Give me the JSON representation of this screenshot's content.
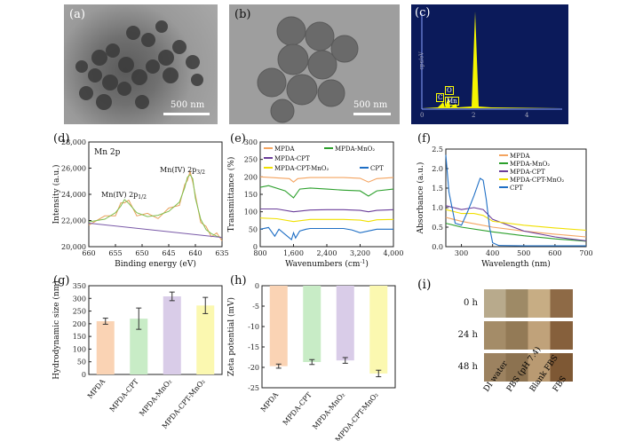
{
  "panels": {
    "a": {
      "label": "(a)",
      "scale": "500 nm"
    },
    "b": {
      "label": "(b)",
      "scale": "500 nm"
    },
    "c": {
      "label": "(c)",
      "ylabel": "cps/eV",
      "peaks": [
        "C",
        "O",
        "Mn"
      ],
      "xticks": [
        "0",
        "2",
        "4"
      ]
    },
    "d": {
      "label": "(d)",
      "title": "Mn 2p",
      "peak1": "Mn(IV) 2p",
      "peak1_sub": "1/2",
      "peak2": "Mn(IV) 2p",
      "peak2_sub": "3/2",
      "xlabel": "Binding energy (eV)",
      "ylabel": "Intensity (a.u.)"
    },
    "e": {
      "label": "(e)",
      "xlabel": "Wavenumbers (cm",
      "xlabel_sup": "-1",
      "xlabel_end": ")",
      "ylabel": "Transmittance (%)"
    },
    "f": {
      "label": "(f)",
      "xlabel": "Wavelength (nm)",
      "ylabel": "Absorbance (a.u.)"
    },
    "g": {
      "label": "(g)",
      "ylabel": "Hydrodynamic size (nm)"
    },
    "h": {
      "label": "(h)",
      "ylabel": "Zeta potential (mV)"
    },
    "i": {
      "label": "(i)",
      "rows": [
        "0 h",
        "24 h",
        "48 h"
      ],
      "cols": [
        "DI water",
        "PBS (pH 7.4)",
        "Blank FBS",
        "FBS"
      ]
    }
  },
  "colors": {
    "orange": "#f4a460",
    "green": "#2ca02c",
    "purple": "#6a3d9a",
    "yellow": "#f0e000",
    "blue": "#1f6fc5",
    "eds": "#f5f500"
  },
  "chart_data": [
    {
      "id": "d",
      "type": "line",
      "xlim": [
        660,
        635
      ],
      "ylim": [
        20000,
        28000
      ],
      "xticks": [
        "660",
        "655",
        "650",
        "645",
        "640",
        "635"
      ],
      "yticks": [
        "20,000",
        "22,000",
        "24,000",
        "26,000",
        "28,000"
      ],
      "series": [
        {
          "x": [
            660,
            657,
            655,
            654,
            653.3,
            652.5,
            651,
            649,
            647,
            645,
            643,
            642,
            641.5,
            641,
            640.5,
            640,
            639,
            638,
            637,
            636,
            635
          ],
          "y": [
            21900,
            22100,
            22600,
            23100,
            23600,
            23300,
            22600,
            22300,
            22400,
            22700,
            23400,
            24500,
            25300,
            25500,
            25200,
            23700,
            22100,
            21300,
            21000,
            20800,
            20700
          ]
        }
      ]
    },
    {
      "id": "e",
      "type": "line",
      "xlim": [
        800,
        4000
      ],
      "ylim": [
        0,
        300
      ],
      "xticks": [
        "800",
        "1,600",
        "2,400",
        "3,200",
        "4,000"
      ],
      "yticks": [
        "0",
        "50",
        "100",
        "150",
        "200",
        "250",
        "300"
      ],
      "legend": [
        "MPDA",
        "MPDA-MnO2",
        "MPDA-CPT",
        "MPDA-CPT-MnO2",
        "CPT"
      ],
      "series": [
        {
          "name": "MPDA",
          "x": [
            800,
            1500,
            1600,
            1700,
            2000,
            2400,
            2800,
            3200,
            3400,
            3600,
            4000
          ],
          "y": [
            200,
            195,
            185,
            195,
            198,
            198,
            198,
            196,
            185,
            195,
            198
          ]
        },
        {
          "name": "MPDA-MnO2",
          "x": [
            800,
            1000,
            1400,
            1600,
            1750,
            2000,
            2400,
            2800,
            3200,
            3400,
            3600,
            4000
          ],
          "y": [
            170,
            175,
            160,
            140,
            165,
            168,
            165,
            162,
            160,
            145,
            160,
            165
          ]
        },
        {
          "name": "MPDA-CPT",
          "x": [
            800,
            1200,
            1600,
            2000,
            2400,
            2800,
            3200,
            3400,
            3600,
            4000
          ],
          "y": [
            108,
            108,
            100,
            105,
            106,
            106,
            104,
            100,
            104,
            106
          ]
        },
        {
          "name": "MPDA-CPT-MnO2",
          "x": [
            800,
            1200,
            1600,
            2000,
            2400,
            2800,
            3200,
            3400,
            3600,
            4000
          ],
          "y": [
            82,
            80,
            72,
            78,
            78,
            78,
            76,
            72,
            77,
            78
          ]
        },
        {
          "name": "CPT",
          "x": [
            800,
            1000,
            1150,
            1250,
            1400,
            1550,
            1600,
            1650,
            1750,
            1900,
            2000,
            2400,
            2800,
            3000,
            3200,
            3400,
            3600,
            4000
          ],
          "y": [
            50,
            55,
            30,
            50,
            35,
            20,
            40,
            25,
            45,
            50,
            52,
            52,
            52,
            48,
            40,
            45,
            50,
            50
          ]
        }
      ]
    },
    {
      "id": "f",
      "type": "line",
      "xlim": [
        250,
        700
      ],
      "ylim": [
        0,
        2.5
      ],
      "xticks": [
        "300",
        "400",
        "500",
        "600",
        "700"
      ],
      "yticks": [
        "0.0",
        "0.5",
        "1.0",
        "1.5",
        "2.0",
        "2.5"
      ],
      "legend": [
        "MPDA",
        "MPDA-MnO2",
        "MPDA-CPT",
        "MPDA-CPT-MnO2",
        "CPT"
      ],
      "series": [
        {
          "name": "MPDA",
          "x": [
            250,
            300,
            400,
            500,
            600,
            700
          ],
          "y": [
            0.75,
            0.65,
            0.5,
            0.4,
            0.32,
            0.25
          ]
        },
        {
          "name": "MPDA-MnO2",
          "x": [
            250,
            300,
            400,
            500,
            600,
            700
          ],
          "y": [
            0.6,
            0.5,
            0.38,
            0.28,
            0.2,
            0.14
          ]
        },
        {
          "name": "MPDA-CPT",
          "x": [
            250,
            300,
            340,
            370,
            400,
            500,
            600,
            700
          ],
          "y": [
            1.05,
            0.95,
            1.0,
            0.95,
            0.7,
            0.4,
            0.25,
            0.15
          ]
        },
        {
          "name": "MPDA-CPT-MnO2",
          "x": [
            250,
            300,
            340,
            370,
            400,
            500,
            600,
            700
          ],
          "y": [
            0.95,
            0.85,
            0.85,
            0.8,
            0.65,
            0.55,
            0.48,
            0.42
          ]
        },
        {
          "name": "CPT",
          "x": [
            250,
            260,
            280,
            300,
            320,
            340,
            360,
            370,
            380,
            390,
            400,
            420,
            500,
            700
          ],
          "y": [
            2.35,
            1.4,
            0.6,
            0.55,
            0.9,
            1.3,
            1.75,
            1.7,
            1.2,
            0.5,
            0.1,
            0.03,
            0.02,
            0.02
          ]
        }
      ]
    },
    {
      "id": "g",
      "type": "bar",
      "categories": [
        "MPDA",
        "MPDA-CPT",
        "MPDA-MnO2",
        "MPDA-CPT-MnO2"
      ],
      "values": [
        210,
        220,
        308,
        272
      ],
      "errors": [
        12,
        42,
        17,
        32
      ],
      "ylim": [
        0,
        350
      ],
      "yticks": [
        "0",
        "50",
        "100",
        "150",
        "200",
        "250",
        "300",
        "350"
      ]
    },
    {
      "id": "h",
      "type": "bar",
      "categories": [
        "MPDA",
        "MPDA-CPT",
        "MPDA-MnO2",
        "MPDA-CPT-MnO2"
      ],
      "values": [
        -19.7,
        -18.7,
        -18.3,
        -21.5
      ],
      "errors": [
        0.5,
        0.6,
        0.7,
        0.8
      ],
      "ylim": [
        -25,
        0
      ],
      "yticks": [
        "0",
        "-5",
        "-10",
        "-15",
        "-20",
        "-25"
      ]
    }
  ]
}
